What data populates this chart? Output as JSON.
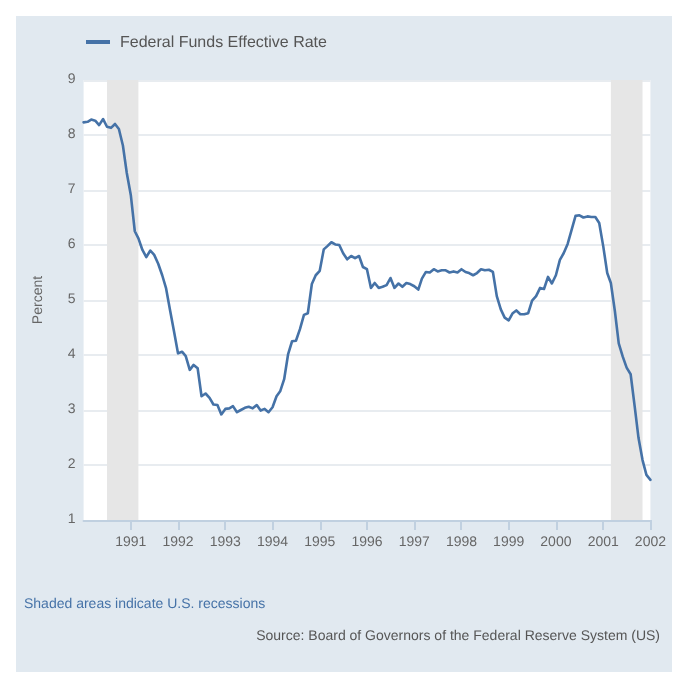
{
  "chart_data": {
    "type": "line",
    "ylabel": "Percent",
    "legend": "top left",
    "grid": "y",
    "marker": "none",
    "line_style": "solid",
    "x": [
      "1990-01",
      "1990-02",
      "1990-03",
      "1990-04",
      "1990-05",
      "1990-06",
      "1990-07",
      "1990-08",
      "1990-09",
      "1990-10",
      "1990-11",
      "1990-12",
      "1991-01",
      "1991-02",
      "1991-03",
      "1991-04",
      "1991-05",
      "1991-06",
      "1991-07",
      "1991-08",
      "1991-09",
      "1991-10",
      "1991-11",
      "1991-12",
      "1992-01",
      "1992-02",
      "1992-03",
      "1992-04",
      "1992-05",
      "1992-06",
      "1992-07",
      "1992-08",
      "1992-09",
      "1992-10",
      "1992-11",
      "1992-12",
      "1993-01",
      "1993-02",
      "1993-03",
      "1993-04",
      "1993-05",
      "1993-06",
      "1993-07",
      "1993-08",
      "1993-09",
      "1993-10",
      "1993-11",
      "1993-12",
      "1994-01",
      "1994-02",
      "1994-03",
      "1994-04",
      "1994-05",
      "1994-06",
      "1994-07",
      "1994-08",
      "1994-09",
      "1994-10",
      "1994-11",
      "1994-12",
      "1995-01",
      "1995-02",
      "1995-03",
      "1995-04",
      "1995-05",
      "1995-06",
      "1995-07",
      "1995-08",
      "1995-09",
      "1995-10",
      "1995-11",
      "1995-12",
      "1996-01",
      "1996-02",
      "1996-03",
      "1996-04",
      "1996-05",
      "1996-06",
      "1996-07",
      "1996-08",
      "1996-09",
      "1996-10",
      "1996-11",
      "1996-12",
      "1997-01",
      "1997-02",
      "1997-03",
      "1997-04",
      "1997-05",
      "1997-06",
      "1997-07",
      "1997-08",
      "1997-09",
      "1997-10",
      "1997-11",
      "1997-12",
      "1998-01",
      "1998-02",
      "1998-03",
      "1998-04",
      "1998-05",
      "1998-06",
      "1998-07",
      "1998-08",
      "1998-09",
      "1998-10",
      "1998-11",
      "1998-12",
      "1999-01",
      "1999-02",
      "1999-03",
      "1999-04",
      "1999-05",
      "1999-06",
      "1999-07",
      "1999-08",
      "1999-09",
      "1999-10",
      "1999-11",
      "1999-12",
      "2000-01",
      "2000-02",
      "2000-03",
      "2000-04",
      "2000-05",
      "2000-06",
      "2000-07",
      "2000-08",
      "2000-09",
      "2000-10",
      "2000-11",
      "2000-12",
      "2001-01",
      "2001-02",
      "2001-03",
      "2001-04",
      "2001-05",
      "2001-06",
      "2001-07",
      "2001-08",
      "2001-09",
      "2001-10",
      "2001-11",
      "2001-12",
      "2002-01"
    ],
    "series": [
      {
        "name": "Federal Funds Effective Rate",
        "color": "#4572a7",
        "values": [
          8.23,
          8.24,
          8.28,
          8.26,
          8.18,
          8.29,
          8.15,
          8.13,
          8.2,
          8.11,
          7.81,
          7.31,
          6.91,
          6.25,
          6.12,
          5.91,
          5.78,
          5.9,
          5.82,
          5.66,
          5.45,
          5.21,
          4.81,
          4.43,
          4.03,
          4.06,
          3.98,
          3.73,
          3.82,
          3.76,
          3.25,
          3.3,
          3.22,
          3.1,
          3.09,
          2.92,
          3.02,
          3.03,
          3.07,
          2.96,
          3.0,
          3.04,
          3.06,
          3.03,
          3.09,
          2.99,
          3.02,
          2.96,
          3.05,
          3.25,
          3.34,
          3.56,
          4.01,
          4.25,
          4.26,
          4.47,
          4.73,
          4.76,
          5.29,
          5.45,
          5.53,
          5.92,
          5.98,
          6.05,
          6.01,
          6.0,
          5.85,
          5.74,
          5.8,
          5.76,
          5.8,
          5.6,
          5.56,
          5.22,
          5.31,
          5.22,
          5.24,
          5.27,
          5.4,
          5.22,
          5.3,
          5.24,
          5.31,
          5.29,
          5.25,
          5.19,
          5.39,
          5.51,
          5.5,
          5.56,
          5.52,
          5.54,
          5.54,
          5.5,
          5.52,
          5.5,
          5.56,
          5.51,
          5.49,
          5.45,
          5.49,
          5.56,
          5.54,
          5.55,
          5.51,
          5.07,
          4.83,
          4.68,
          4.63,
          4.76,
          4.81,
          4.74,
          4.74,
          4.76,
          4.99,
          5.07,
          5.22,
          5.2,
          5.42,
          5.3,
          5.45,
          5.73,
          5.85,
          6.02,
          6.27,
          6.53,
          6.54,
          6.5,
          6.52,
          6.51,
          6.51,
          6.4,
          5.98,
          5.49,
          5.31,
          4.8,
          4.21,
          3.97,
          3.77,
          3.65,
          3.07,
          2.49,
          2.09,
          1.82,
          1.73
        ]
      }
    ],
    "xlim": [
      "1990-01",
      "2002-01"
    ],
    "xticks": [
      "1991",
      "1992",
      "1993",
      "1994",
      "1995",
      "1996",
      "1997",
      "1998",
      "1999",
      "2000",
      "2001",
      "2002"
    ],
    "ylim": [
      1,
      9
    ],
    "yticks": [
      1,
      2,
      3,
      4,
      5,
      6,
      7,
      8,
      9
    ],
    "bands": [
      {
        "axis": "x",
        "from": "1990-07",
        "to": "1991-03",
        "color": "#e6e6e6"
      },
      {
        "axis": "x",
        "from": "2001-03",
        "to": "2001-11",
        "color": "#e6e6e6"
      }
    ],
    "annotations": [
      "Shaded areas indicate U.S. recessions",
      "Source: Board of Governors of the Federal Reserve System (US)"
    ]
  }
}
